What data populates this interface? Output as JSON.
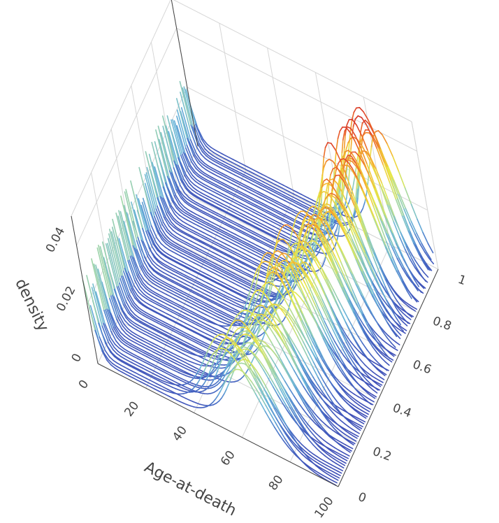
{
  "chart_data": {
    "type": "surface-lines-3d",
    "description_note": "",
    "x_axis": {
      "title": "Age-at-death",
      "range": [
        0,
        100
      ],
      "ticks": [
        "0",
        "20",
        "40",
        "60",
        "80",
        "100"
      ]
    },
    "y_axis": {
      "title": "",
      "range": [
        0,
        1
      ],
      "ticks": [
        "0",
        "0.2",
        "0.4",
        "0.6",
        "0.8",
        "1"
      ]
    },
    "z_axis": {
      "title": "density",
      "range": [
        0,
        0.05
      ],
      "ticks": [
        "0",
        "0.02",
        "0.04"
      ]
    },
    "series_count": 90,
    "colorscale": [
      "#3f4fb7",
      "#4a74c9",
      "#6bb7d9",
      "#a8d9a0",
      "#e6e84a",
      "#f5b62f",
      "#e8562a",
      "#c81f28"
    ],
    "grid": true,
    "legend": "none"
  }
}
